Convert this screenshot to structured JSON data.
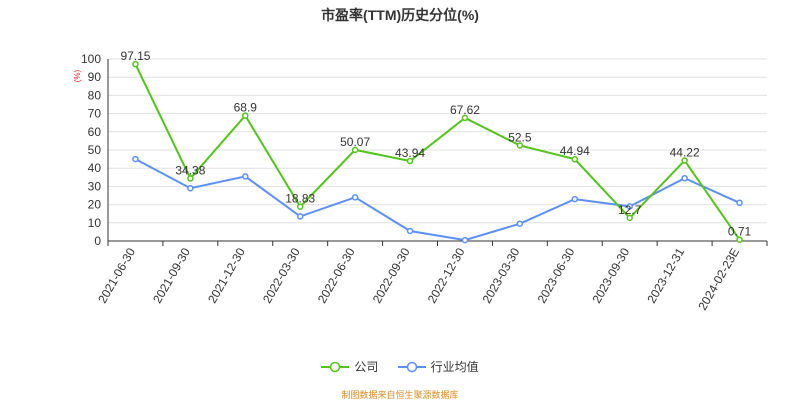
{
  "chart_data": {
    "type": "line",
    "title": "市盈率(TTM)历史分位(%)",
    "ylabel": "(%)",
    "ylim": [
      0,
      100
    ],
    "yticks": [
      0,
      10,
      20,
      30,
      40,
      50,
      60,
      70,
      80,
      90,
      100
    ],
    "categories": [
      "2021-06-30",
      "2021-09-30",
      "2021-12-30",
      "2022-03-30",
      "2022-06-30",
      "2022-09-30",
      "2022-12-30",
      "2023-03-30",
      "2023-06-30",
      "2023-09-30",
      "2023-12-31",
      "2024-02-23E"
    ],
    "series": [
      {
        "name": "公司",
        "color": "#52c41a",
        "values": [
          97.15,
          34.38,
          68.9,
          18.83,
          50.07,
          43.94,
          67.62,
          52.5,
          44.94,
          12.7,
          44.22,
          0.71
        ],
        "labels": [
          "97.15",
          "34.38",
          "68.9",
          "18.83",
          "50.07",
          "43.94",
          "67.62",
          "52.5",
          "44.94",
          "12.7",
          "44.22",
          "0.71"
        ]
      },
      {
        "name": "行业均值",
        "color": "#5b8ff9",
        "values": [
          45,
          29,
          35.5,
          13.5,
          24,
          5.5,
          0.5,
          9.5,
          23,
          19,
          34.5,
          21
        ]
      }
    ],
    "grid": true,
    "legend_position": "bottom-center"
  },
  "source_note": "制图数据来自恒生聚源数据库"
}
